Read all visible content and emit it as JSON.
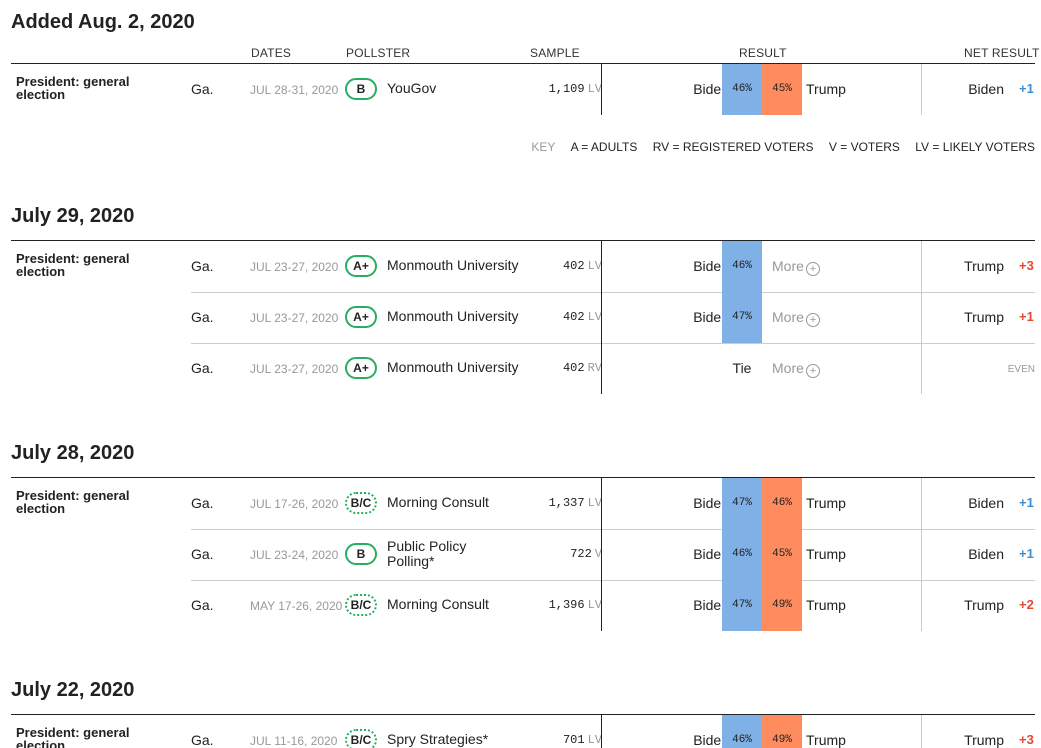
{
  "headers": {
    "dates": "DATES",
    "pollster": "POLLSTER",
    "sample": "SAMPLE",
    "result": "RESULT",
    "net_result": "NET RESULT"
  },
  "race_label": "President: general election",
  "more_label": "More",
  "key": {
    "label": "KEY",
    "a": "A = ADULTS",
    "rv": "RV = REGISTERED VOTERS",
    "v": "V = VOTERS",
    "lv": "LV = LIKELY VOTERS"
  },
  "sections": [
    {
      "title": "Added Aug. 2, 2020",
      "rows": [
        {
          "geo": "Ga.",
          "dates": "JUL 28-31, 2020",
          "grade": "B",
          "pollster": "YouGov",
          "sample": "1,109",
          "type": "LV",
          "left_cand": "Biden",
          "left_pct": "46%",
          "right_cand": "Trump",
          "right_pct": "45%",
          "net_winner": "Biden",
          "net_value": "+1"
        }
      ]
    },
    {
      "title": "July 29, 2020",
      "rows": [
        {
          "geo": "Ga.",
          "dates": "JUL 23-27, 2020",
          "grade": "A+",
          "pollster": "Monmouth University",
          "sample": "402",
          "type": "LV",
          "left_cand": "Biden",
          "left_pct": "46%",
          "net_winner": "Trump",
          "net_value": "+3"
        },
        {
          "geo": "Ga.",
          "dates": "JUL 23-27, 2020",
          "grade": "A+",
          "pollster": "Monmouth University",
          "sample": "402",
          "type": "LV",
          "left_cand": "Biden",
          "left_pct": "47%",
          "net_winner": "Trump",
          "net_value": "+1"
        },
        {
          "geo": "Ga.",
          "dates": "JUL 23-27, 2020",
          "grade": "A+",
          "pollster": "Monmouth University",
          "sample": "402",
          "type": "RV",
          "tie": "Tie",
          "net_even": "EVEN"
        }
      ]
    },
    {
      "title": "July 28, 2020",
      "rows": [
        {
          "geo": "Ga.",
          "dates": "JUL 17-26, 2020",
          "grade": "B/C",
          "pollster": "Morning Consult",
          "sample": "1,337",
          "type": "LV",
          "left_cand": "Biden",
          "left_pct": "47%",
          "right_cand": "Trump",
          "right_pct": "46%",
          "net_winner": "Biden",
          "net_value": "+1"
        },
        {
          "geo": "Ga.",
          "dates": "JUL 23-24, 2020",
          "grade": "B",
          "pollster": "Public Policy Polling*",
          "sample": "722",
          "type": "V",
          "left_cand": "Biden",
          "left_pct": "46%",
          "right_cand": "Trump",
          "right_pct": "45%",
          "net_winner": "Biden",
          "net_value": "+1"
        },
        {
          "geo": "Ga.",
          "dates": "MAY 17-26, 2020",
          "grade": "B/C",
          "pollster": "Morning Consult",
          "sample": "1,396",
          "type": "LV",
          "left_cand": "Biden",
          "left_pct": "47%",
          "right_cand": "Trump",
          "right_pct": "49%",
          "net_winner": "Trump",
          "net_value": "+2"
        }
      ]
    },
    {
      "title": "July 22, 2020",
      "rows": [
        {
          "geo": "Ga.",
          "dates": "JUL 11-16, 2020",
          "grade": "B/C",
          "pollster": "Spry Strategies*",
          "sample": "701",
          "type": "LV",
          "left_cand": "Biden",
          "left_pct": "46%",
          "right_cand": "Trump",
          "right_pct": "49%",
          "net_winner": "Trump",
          "net_value": "+3"
        }
      ]
    }
  ]
}
